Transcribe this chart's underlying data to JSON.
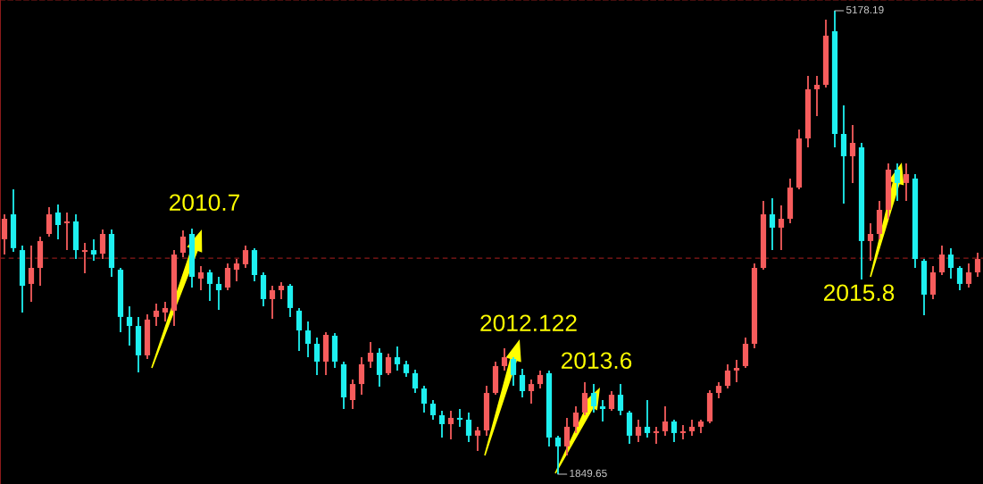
{
  "chart_data": {
    "type": "candlestick",
    "categories": [
      null,
      null,
      null,
      null,
      null,
      null,
      null,
      null,
      null,
      null,
      null,
      null,
      null,
      null,
      null,
      null,
      null,
      null,
      null,
      null,
      null,
      null,
      null,
      null,
      null,
      null,
      null,
      null,
      null,
      null,
      null,
      null,
      null,
      null,
      null,
      null,
      null,
      null,
      null,
      null,
      null,
      null,
      null,
      null,
      null,
      null,
      null,
      null,
      null,
      null,
      null,
      null,
      null,
      null,
      null,
      null,
      null,
      null,
      null,
      null,
      null,
      null,
      null,
      null,
      null,
      null,
      null,
      null,
      null,
      null,
      null,
      null,
      null,
      null,
      null,
      null,
      null,
      null,
      null,
      null,
      null,
      null,
      null,
      null,
      null,
      null,
      null,
      null,
      null,
      null,
      null,
      null,
      null,
      null,
      null,
      null,
      null,
      null,
      null,
      null,
      null,
      null,
      null,
      null,
      null,
      null,
      null,
      null,
      null,
      null
    ],
    "ohlc": [
      [
        3537,
        3716,
        3427,
        3684
      ],
      [
        3716,
        3895,
        3446,
        3473
      ],
      [
        3459,
        3492,
        3011,
        3203
      ],
      [
        3216,
        3492,
        3088,
        3331
      ],
      [
        3331,
        3556,
        3203,
        3524
      ],
      [
        3575,
        3767,
        3556,
        3716
      ],
      [
        3729,
        3786,
        3537,
        3639
      ],
      [
        3652,
        3729,
        3459,
        3665
      ],
      [
        3665,
        3716,
        3395,
        3459
      ],
      [
        3446,
        3511,
        3293,
        3459
      ],
      [
        3459,
        3537,
        3382,
        3427
      ],
      [
        3433,
        3607,
        3395,
        3575
      ],
      [
        3575,
        3607,
        3267,
        3331
      ],
      [
        3318,
        3331,
        2869,
        2979
      ],
      [
        2979,
        3056,
        2773,
        2914
      ],
      [
        2914,
        2979,
        2581,
        2703
      ],
      [
        2703,
        2998,
        2677,
        2960
      ],
      [
        2979,
        3075,
        2914,
        3024
      ],
      [
        3011,
        3088,
        2946,
        3043
      ],
      [
        3024,
        3459,
        2914,
        3427
      ],
      [
        3440,
        3601,
        3408,
        3556
      ],
      [
        3575,
        3614,
        3190,
        3267
      ],
      [
        3254,
        3344,
        3171,
        3299
      ],
      [
        3299,
        3318,
        3094,
        3216
      ],
      [
        3216,
        3267,
        3030,
        3171
      ],
      [
        3190,
        3363,
        3171,
        3331
      ],
      [
        3318,
        3395,
        3235,
        3363
      ],
      [
        3357,
        3492,
        3331,
        3459
      ],
      [
        3459,
        3473,
        3235,
        3280
      ],
      [
        3280,
        3299,
        3056,
        3107
      ],
      [
        3107,
        3203,
        2966,
        3171
      ],
      [
        3171,
        3229,
        3107,
        3203
      ],
      [
        3203,
        3216,
        2979,
        3043
      ],
      [
        3024,
        3043,
        2735,
        2882
      ],
      [
        2882,
        2946,
        2690,
        2786
      ],
      [
        2786,
        2831,
        2562,
        2658
      ],
      [
        2658,
        2869,
        2562,
        2850
      ],
      [
        2844,
        2863,
        2613,
        2658
      ],
      [
        2639,
        2658,
        2318,
        2401
      ],
      [
        2382,
        2530,
        2318,
        2497
      ],
      [
        2497,
        2690,
        2420,
        2639
      ],
      [
        2658,
        2799,
        2613,
        2722
      ],
      [
        2722,
        2754,
        2478,
        2562
      ],
      [
        2575,
        2716,
        2562,
        2690
      ],
      [
        2690,
        2767,
        2594,
        2639
      ],
      [
        2639,
        2664,
        2549,
        2575
      ],
      [
        2575,
        2600,
        2433,
        2465
      ],
      [
        2465,
        2484,
        2292,
        2356
      ],
      [
        2356,
        2382,
        2241,
        2273
      ],
      [
        2273,
        2305,
        2113,
        2209
      ],
      [
        2209,
        2305,
        2100,
        2254
      ],
      [
        2254,
        2318,
        2190,
        2241
      ],
      [
        2241,
        2292,
        2081,
        2126
      ],
      [
        2126,
        2190,
        2017,
        2164
      ],
      [
        2164,
        2484,
        2126,
        2433
      ],
      [
        2433,
        2658,
        2420,
        2626
      ],
      [
        2626,
        2754,
        2594,
        2690
      ],
      [
        2677,
        2690,
        2484,
        2562
      ],
      [
        2562,
        2607,
        2401,
        2446
      ],
      [
        2446,
        2530,
        2356,
        2497
      ],
      [
        2497,
        2594,
        2465,
        2562
      ],
      [
        2575,
        2594,
        2049,
        2113
      ],
      [
        2113,
        2126,
        1849.65,
        2049
      ],
      [
        2049,
        2254,
        1984,
        2190
      ],
      [
        2190,
        2337,
        2145,
        2292
      ],
      [
        2292,
        2511,
        2273,
        2433
      ],
      [
        2433,
        2497,
        2292,
        2337
      ],
      [
        2337,
        2382,
        2228,
        2318
      ],
      [
        2318,
        2446,
        2305,
        2420
      ],
      [
        2420,
        2497,
        2273,
        2305
      ],
      [
        2292,
        2305,
        2068,
        2126
      ],
      [
        2126,
        2241,
        2081,
        2190
      ],
      [
        2190,
        2382,
        2113,
        2145
      ],
      [
        2145,
        2190,
        2068,
        2158
      ],
      [
        2158,
        2337,
        2126,
        2228
      ],
      [
        2228,
        2241,
        2081,
        2145
      ],
      [
        2145,
        2203,
        2100,
        2158
      ],
      [
        2158,
        2241,
        2126,
        2190
      ],
      [
        2190,
        2241,
        2145,
        2228
      ],
      [
        2228,
        2452,
        2215,
        2433
      ],
      [
        2433,
        2511,
        2395,
        2484
      ],
      [
        2484,
        2639,
        2465,
        2594
      ],
      [
        2594,
        2671,
        2511,
        2613
      ],
      [
        2626,
        2831,
        2613,
        2786
      ],
      [
        2786,
        3363,
        2754,
        3331
      ],
      [
        3331,
        3812,
        3318,
        3716
      ],
      [
        3716,
        3831,
        3459,
        3620
      ],
      [
        3620,
        3780,
        3459,
        3684
      ],
      [
        3684,
        3973,
        3652,
        3908
      ],
      [
        3908,
        4325,
        3895,
        4261
      ],
      [
        4261,
        4710,
        4197,
        4614
      ],
      [
        4614,
        4710,
        4421,
        4646
      ],
      [
        4646,
        5114,
        4627,
        4999
      ],
      [
        5031,
        5178.19,
        4197,
        4293
      ],
      [
        4293,
        4499,
        3793,
        4133
      ],
      [
        4133,
        4357,
        3941,
        4229
      ],
      [
        4197,
        4229,
        3248,
        3524
      ],
      [
        3524,
        3652,
        3382,
        3575
      ],
      [
        3575,
        3812,
        3537,
        3748
      ],
      [
        3748,
        4082,
        3684,
        4037
      ],
      [
        4037,
        4082,
        3812,
        3941
      ],
      [
        3941,
        4082,
        3812,
        4005
      ],
      [
        3973,
        4005,
        3331,
        3395
      ],
      [
        3382,
        3395,
        2992,
        3139
      ],
      [
        3139,
        3344,
        3107,
        3299
      ],
      [
        3299,
        3492,
        3280,
        3427
      ],
      [
        3427,
        3473,
        3254,
        3331
      ],
      [
        3331,
        3344,
        3171,
        3216
      ],
      [
        3216,
        3363,
        3190,
        3299
      ],
      [
        3299,
        3440,
        3267,
        3395
      ]
    ],
    "colors": [
      "#f65c5c",
      "#1ef0f0",
      "#1ef0f0",
      "#f65c5c",
      "#f65c5c",
      "#f65c5c",
      "#1ef0f0",
      "#f65c5c",
      "#1ef0f0",
      "#f65c5c",
      "#1ef0f0",
      "#f65c5c",
      "#1ef0f0",
      "#1ef0f0",
      "#1ef0f0",
      "#1ef0f0",
      "#f65c5c",
      "#f65c5c",
      "#f65c5c",
      "#f65c5c",
      "#f65c5c",
      "#1ef0f0",
      "#f65c5c",
      "#1ef0f0",
      "#1ef0f0",
      "#f65c5c",
      "#f65c5c",
      "#f65c5c",
      "#1ef0f0",
      "#1ef0f0",
      "#f65c5c",
      "#f65c5c",
      "#1ef0f0",
      "#1ef0f0",
      "#1ef0f0",
      "#1ef0f0",
      "#f65c5c",
      "#1ef0f0",
      "#1ef0f0",
      "#f65c5c",
      "#f65c5c",
      "#f65c5c",
      "#1ef0f0",
      "#f65c5c",
      "#1ef0f0",
      "#1ef0f0",
      "#1ef0f0",
      "#1ef0f0",
      "#1ef0f0",
      "#1ef0f0",
      "#f65c5c",
      "#1ef0f0",
      "#1ef0f0",
      "#f65c5c",
      "#f65c5c",
      "#f65c5c",
      "#f65c5c",
      "#1ef0f0",
      "#1ef0f0",
      "#f65c5c",
      "#f65c5c",
      "#1ef0f0",
      "#1ef0f0",
      "#f65c5c",
      "#f65c5c",
      "#f65c5c",
      "#1ef0f0",
      "#1ef0f0",
      "#f65c5c",
      "#1ef0f0",
      "#1ef0f0",
      "#f65c5c",
      "#1ef0f0",
      "#f65c5c",
      "#f65c5c",
      "#1ef0f0",
      "#f65c5c",
      "#f65c5c",
      "#f65c5c",
      "#f65c5c",
      "#f65c5c",
      "#f65c5c",
      "#f65c5c",
      "#f65c5c",
      "#f65c5c",
      "#f65c5c",
      "#1ef0f0",
      "#f65c5c",
      "#f65c5c",
      "#f65c5c",
      "#f65c5c",
      "#f65c5c",
      "#f65c5c",
      "#1ef0f0",
      "#1ef0f0",
      "#f65c5c",
      "#1ef0f0",
      "#f65c5c",
      "#f65c5c",
      "#f65c5c",
      "#1ef0f0",
      "#f65c5c",
      "#1ef0f0",
      "#1ef0f0",
      "#f65c5c",
      "#f65c5c",
      "#1ef0f0",
      "#1ef0f0",
      "#f65c5c",
      "#f65c5c"
    ],
    "ref_lines": [
      {
        "axis": "y",
        "value": 3401,
        "color": "#8b1a1a",
        "line_style": "dashed"
      }
    ],
    "annotations": [
      "2010.7",
      "2012.122",
      "2013.6",
      "2015.8",
      "5178.19",
      "1849.65"
    ]
  }
}
